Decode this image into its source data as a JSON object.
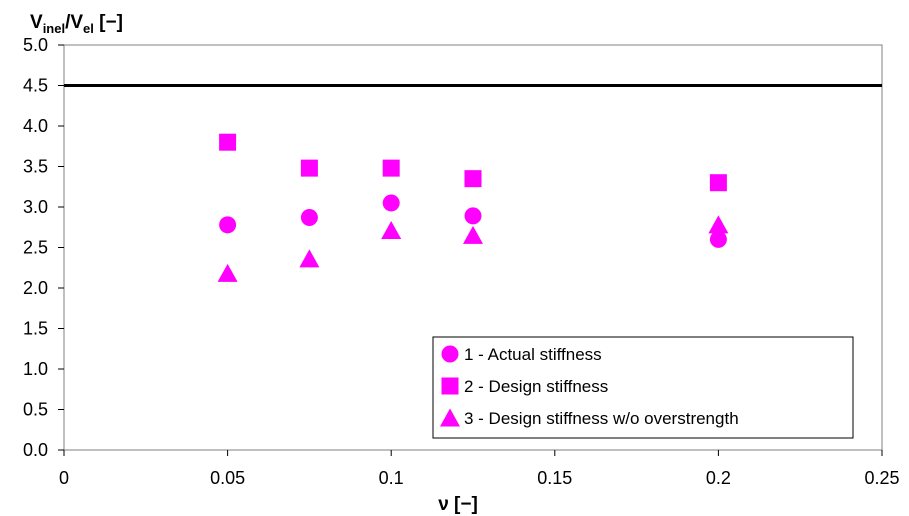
{
  "chart_data": {
    "type": "scatter",
    "ylabel": {
      "v1": "V",
      "sub1": "inel",
      "slash": "/V",
      "sub2": "el",
      "unit": " [−]"
    },
    "xlabel": "ν [−]",
    "xlim": [
      0,
      0.25
    ],
    "ylim": [
      0,
      5.0
    ],
    "x_ticks": [
      "0",
      "0.05",
      "0.1",
      "0.15",
      "0.2",
      "0.25"
    ],
    "x_tick_values": [
      0,
      0.05,
      0.1,
      0.15,
      0.2,
      0.25
    ],
    "y_ticks": [
      "0.0",
      "0.5",
      "1.0",
      "1.5",
      "2.0",
      "2.5",
      "3.0",
      "3.5",
      "4.0",
      "4.5",
      "5.0"
    ],
    "y_tick_values": [
      0,
      0.5,
      1.0,
      1.5,
      2.0,
      2.5,
      3.0,
      3.5,
      4.0,
      4.5,
      5.0
    ],
    "reference_line": {
      "y": 4.5,
      "color": "#000000"
    },
    "grid": false,
    "legend_position": "bottom-right",
    "series": [
      {
        "name": "1 - Actual stiffness",
        "marker": "circle",
        "color": "#ff00ff",
        "x": [
          0.05,
          0.075,
          0.1,
          0.125,
          0.2
        ],
        "y": [
          2.78,
          2.87,
          3.05,
          2.89,
          2.6
        ]
      },
      {
        "name": "2 - Design stiffness",
        "marker": "square",
        "color": "#ff00ff",
        "x": [
          0.05,
          0.075,
          0.1,
          0.125,
          0.2
        ],
        "y": [
          3.8,
          3.48,
          3.48,
          3.35,
          3.3
        ]
      },
      {
        "name": "3 - Design stiffness w/o overstrength",
        "marker": "triangle",
        "color": "#ff00ff",
        "x": [
          0.05,
          0.075,
          0.1,
          0.125,
          0.2
        ],
        "y": [
          2.18,
          2.36,
          2.71,
          2.65,
          2.78
        ]
      }
    ]
  }
}
